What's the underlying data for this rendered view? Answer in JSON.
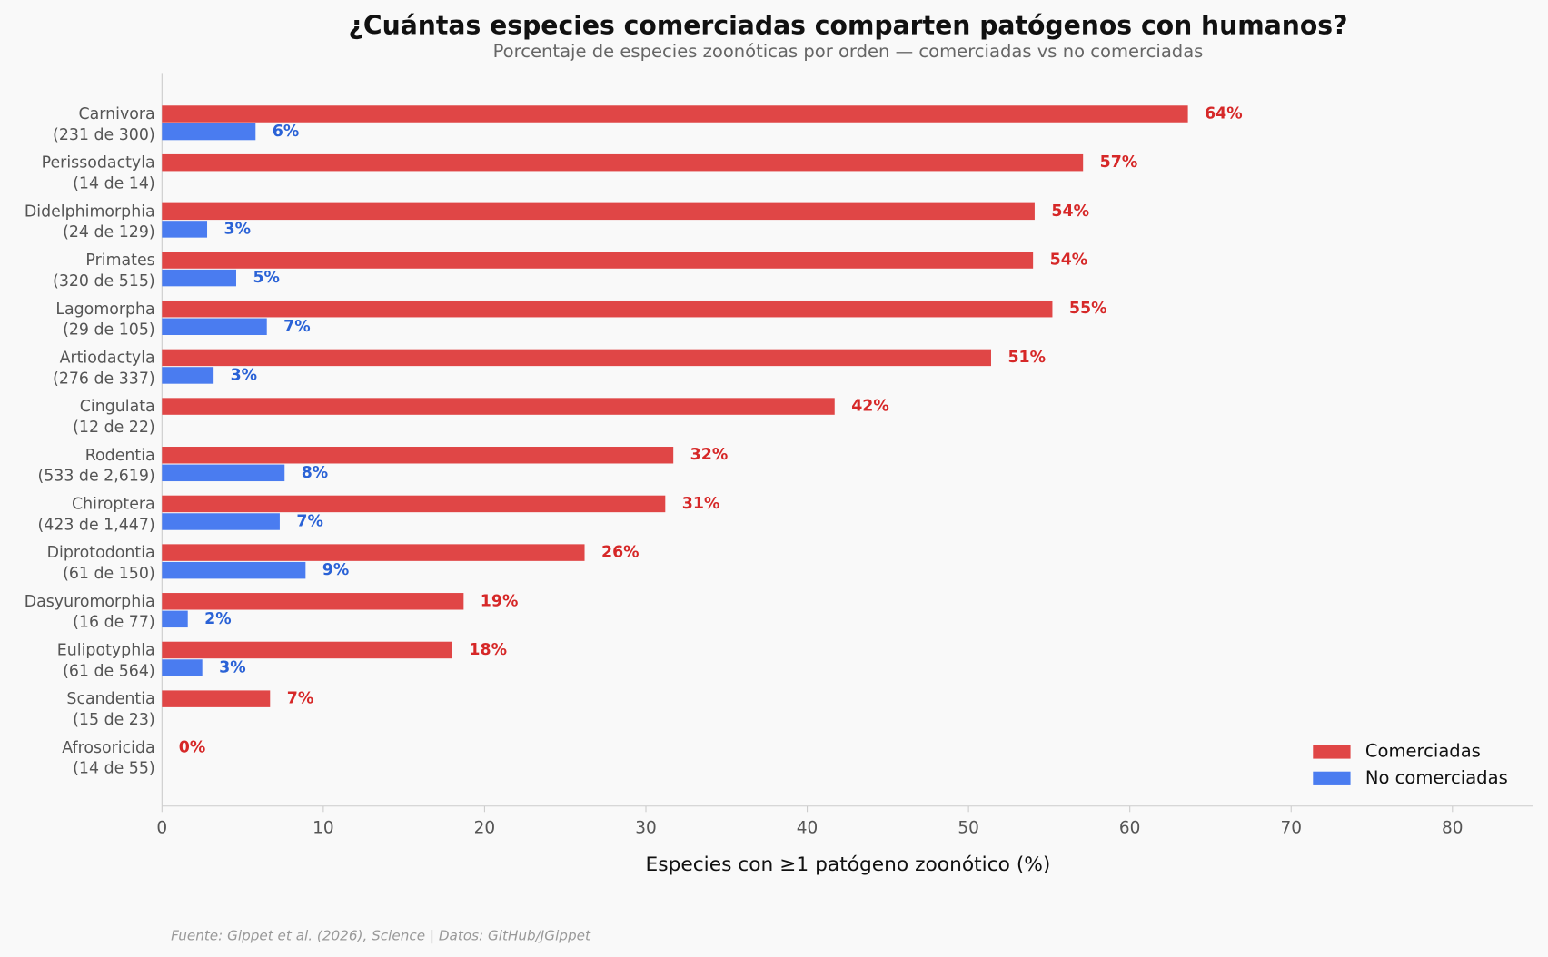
{
  "chart_data": {
    "type": "bar",
    "orientation": "horizontal",
    "title": "¿Cuántas especies comerciadas comparten patógenos con humanos?",
    "subtitle": "Porcentaje de especies zoonóticas por orden — comerciadas vs no comerciadas",
    "xlabel": "Especies con ≥1 patógeno zoonótico (%)",
    "source": "Fuente: Gippet et al. (2026), Science | Datos: GitHub/JGippet",
    "categories": [
      "Carnivora",
      "Perissodactyla",
      "Didelphimorphia",
      "Primates",
      "Lagomorpha",
      "Artiodactyla",
      "Cingulata",
      "Rodentia",
      "Chiroptera",
      "Diprotodontia",
      "Dasyuromorphia",
      "Eulipotyphla",
      "Scandentia",
      "Afrosoricida"
    ],
    "category_counts": [
      "(231 de 300)",
      "(14 de 14)",
      "(24 de 129)",
      "(320 de 515)",
      "(29 de 105)",
      "(276 de 337)",
      "(12 de 22)",
      "(533 de 2,619)",
      "(423 de 1,447)",
      "(61 de 150)",
      "(16 de 77)",
      "(61 de 564)",
      "(15 de 23)",
      "(14 de 55)"
    ],
    "series": [
      {
        "name": "Comerciadas",
        "color": "#e04646",
        "label_color": "#d62828",
        "values": [
          63.6,
          57.1,
          54.1,
          54.0,
          55.2,
          51.4,
          41.7,
          31.7,
          31.2,
          26.2,
          18.7,
          18.0,
          6.7,
          0
        ],
        "value_labels": [
          "64%",
          "57%",
          "54%",
          "54%",
          "55%",
          "51%",
          "42%",
          "32%",
          "31%",
          "26%",
          "19%",
          "18%",
          "7%",
          "0%"
        ]
      },
      {
        "name": "No comerciadas",
        "color": "#4a7cf0",
        "label_color": "#2a62d6",
        "values": [
          5.8,
          null,
          2.8,
          4.6,
          6.5,
          3.2,
          null,
          7.6,
          7.3,
          8.9,
          1.6,
          2.5,
          null,
          null
        ],
        "value_labels": [
          "6%",
          null,
          "3%",
          "5%",
          "7%",
          "3%",
          null,
          "8%",
          "7%",
          "9%",
          "2%",
          "3%",
          null,
          null
        ]
      }
    ],
    "xlim": [
      0,
      85
    ],
    "xticks": [
      0,
      10,
      20,
      30,
      40,
      50,
      60,
      70,
      80
    ],
    "legend": "lower right"
  }
}
